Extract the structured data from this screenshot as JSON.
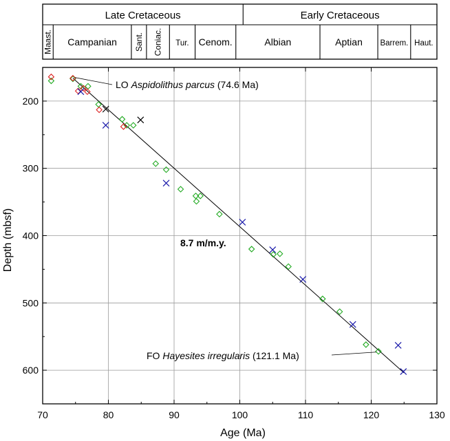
{
  "chart_data": {
    "type": "scatter",
    "xlabel": "Age (Ma)",
    "ylabel": "Depth (mbsf)",
    "xlim": [
      70,
      130
    ],
    "ylim": [
      650,
      150
    ],
    "y_inverted": true,
    "grid": true,
    "x_ticks": [
      70,
      80,
      90,
      100,
      110,
      120,
      130
    ],
    "y_ticks": [
      200,
      300,
      400,
      500,
      600
    ],
    "stratigraphy": {
      "epochs": [
        {
          "label": "Late Cretaceous",
          "from": 70,
          "to": 100.5
        },
        {
          "label": "Early Cretaceous",
          "from": 100.5,
          "to": 130
        }
      ],
      "stages": [
        {
          "label": "Maast.",
          "from": 70,
          "to": 71.6,
          "rotated": true
        },
        {
          "label": "Campanian",
          "from": 71.6,
          "to": 83.5
        },
        {
          "label": "Sant.",
          "from": 83.5,
          "to": 85.8,
          "rotated": true
        },
        {
          "label": "Coniac.",
          "from": 85.8,
          "to": 89.3,
          "rotated": true
        },
        {
          "label": "Tur.",
          "from": 89.3,
          "to": 93.2
        },
        {
          "label": "Cenom.",
          "from": 93.2,
          "to": 99.4
        },
        {
          "label": "Albian",
          "from": 99.4,
          "to": 112.2
        },
        {
          "label": "Aptian",
          "from": 112.2,
          "to": 121.0
        },
        {
          "label": "Barrem.",
          "from": 121.0,
          "to": 126.0
        },
        {
          "label": "Haut.",
          "from": 126.0,
          "to": 130
        }
      ]
    },
    "series": [
      {
        "marker": "diamond",
        "color": "#22aa22",
        "points": [
          [
            71.3,
            170
          ],
          [
            74.6,
            167
          ],
          [
            75.8,
            178
          ],
          [
            76.9,
            178
          ],
          [
            78.5,
            205
          ],
          [
            82.1,
            227
          ],
          [
            82.8,
            236
          ],
          [
            83.8,
            236
          ],
          [
            87.2,
            293
          ],
          [
            88.8,
            302
          ],
          [
            91.0,
            331
          ],
          [
            93.3,
            341
          ],
          [
            93.4,
            349
          ],
          [
            94.0,
            341
          ],
          [
            96.9,
            368
          ],
          [
            101.8,
            420
          ],
          [
            105.1,
            428
          ],
          [
            106.1,
            427
          ],
          [
            107.4,
            446
          ],
          [
            112.6,
            494
          ],
          [
            115.2,
            513
          ],
          [
            119.2,
            562
          ],
          [
            121.1,
            572
          ]
        ]
      },
      {
        "marker": "diamond",
        "color": "#dd2222",
        "points": [
          [
            71.3,
            164
          ],
          [
            74.6,
            166
          ],
          [
            75.4,
            185
          ],
          [
            76.2,
            181
          ],
          [
            76.8,
            186
          ],
          [
            78.6,
            213
          ],
          [
            82.3,
            238
          ]
        ]
      },
      {
        "marker": "x",
        "color": "#1a1aaa",
        "points": [
          [
            75.8,
            186
          ],
          [
            79.6,
            236
          ],
          [
            88.8,
            322
          ],
          [
            100.4,
            380
          ],
          [
            105.0,
            421
          ],
          [
            109.6,
            465
          ],
          [
            117.2,
            532
          ],
          [
            124.1,
            563
          ],
          [
            124.9,
            602
          ]
        ]
      },
      {
        "marker": "x",
        "color": "#000000",
        "points": [
          [
            79.6,
            212
          ],
          [
            84.9,
            228
          ]
        ]
      }
    ],
    "trend_line": {
      "from": [
        74.6,
        166
      ],
      "to": [
        125.0,
        604
      ],
      "label": "8.7 m/m.y."
    },
    "annotations": [
      {
        "prefix": "LO ",
        "taxon": "Aspidolithus parcus",
        "suffix": " (74.6 Ma)",
        "point": [
          74.6,
          166
        ]
      },
      {
        "prefix": "FO ",
        "taxon": "Hayesites irregularis",
        "suffix": " (121.1 Ma)",
        "point": [
          121.1,
          572
        ]
      }
    ]
  }
}
